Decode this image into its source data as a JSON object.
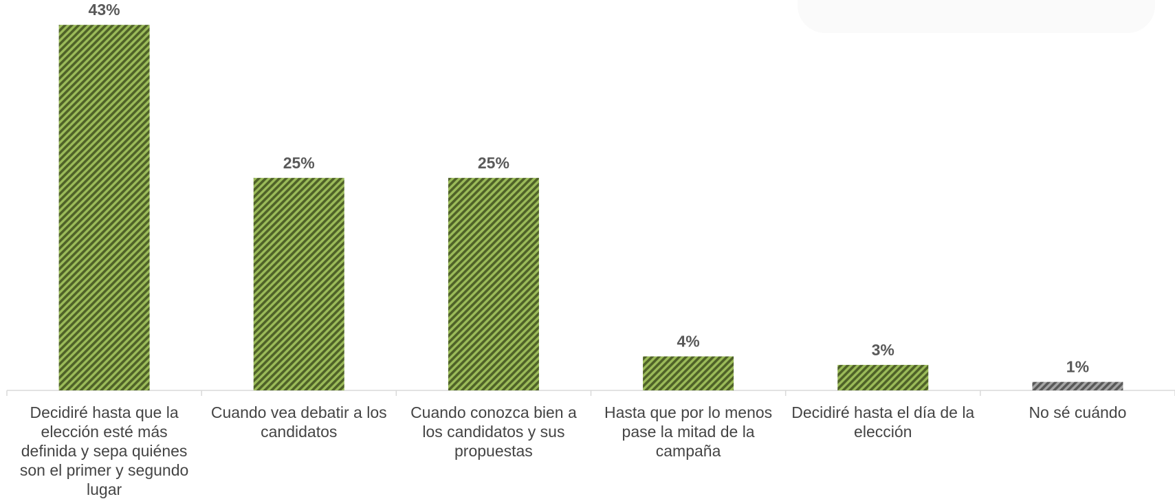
{
  "chart_data": {
    "type": "bar",
    "categories": [
      "Decidiré hasta que la elección esté más definida y sepa quiénes son el primer y segundo lugar",
      "Cuando vea debatir a los candidatos",
      "Cuando conozca bien a los candidatos y sus propuestas",
      "Hasta que por lo menos pase la mitad de la campaña",
      "Decidiré hasta el día de la elección",
      "No sé cuándo"
    ],
    "values": [
      43,
      25,
      25,
      4,
      3,
      1
    ],
    "value_labels": [
      "43%",
      "25%",
      "25%",
      "4%",
      "3%",
      "1%"
    ],
    "bar_colors": [
      "#76923c",
      "#76923c",
      "#76923c",
      "#76923c",
      "#76923c",
      "#7f7f7f"
    ],
    "pattern": "diagonal-stripes",
    "ylim": [
      0,
      43.5
    ],
    "grid": false,
    "legend": "none"
  }
}
